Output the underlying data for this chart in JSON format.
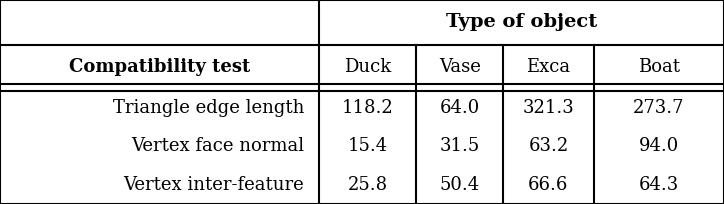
{
  "title_row": "Type of object",
  "header_col": "Compatibility test",
  "col_headers": [
    "Duck",
    "Vase",
    "Exca",
    "Boat"
  ],
  "row_labels": [
    "Triangle edge length",
    "Vertex face normal",
    "Vertex inter-feature"
  ],
  "data": [
    [
      "118.2",
      "64.0",
      "321.3",
      "273.7"
    ],
    [
      "15.4",
      "31.5",
      "63.2",
      "94.0"
    ],
    [
      "25.8",
      "50.4",
      "66.6",
      "64.3"
    ]
  ],
  "bg_color": "#ffffff",
  "text_color": "#000000",
  "line_color": "#000000",
  "font_size": 13
}
